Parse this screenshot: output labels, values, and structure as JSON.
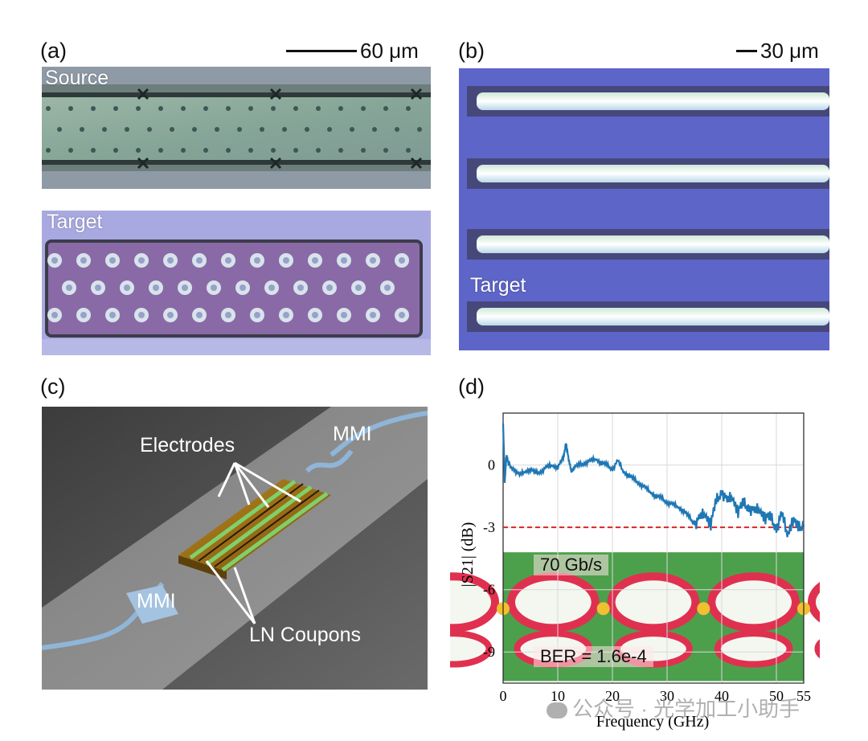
{
  "panels": {
    "a": {
      "label": "(a)",
      "scale": "60 μm",
      "source_label": "Source",
      "target_label": "Target"
    },
    "b": {
      "label": "(b)",
      "scale": "30 μm",
      "target_label": "Target"
    },
    "c": {
      "label": "(c)",
      "annotations": {
        "electrodes": "Electrodes",
        "mmi_top": "MMI",
        "mmi_bottom": "MMI",
        "ln_coupons": "LN Coupons"
      }
    },
    "d": {
      "label": "(d)",
      "eye_rate": "70 Gb/s",
      "ber": "BER = 1.6e-4"
    }
  },
  "watermark": "公众号 · 光学加工小助手",
  "colors": {
    "trace": "#1f77b4",
    "threshold": "#d62728",
    "panel_b_bg": "#5b63c4",
    "panel_a_source_bg": "#8aa79a",
    "panel_a_target_bg": "#8a6aa6"
  },
  "chart_data": {
    "type": "line",
    "xlabel": "Frequency (GHz)",
    "ylabel": "|S21| (dB)",
    "xlim": [
      0,
      55
    ],
    "ylim": [
      -10.5,
      2.5
    ],
    "xticks": [
      0,
      10,
      20,
      30,
      40,
      50,
      55
    ],
    "yticks": [
      0,
      -3,
      -6,
      -9
    ],
    "grid": true,
    "series": [
      {
        "x": [
          0,
          0.3,
          0.6,
          1,
          2,
          3,
          4,
          5,
          6,
          7,
          8,
          9,
          10,
          11,
          11.5,
          12,
          12.5,
          13,
          14,
          15,
          16,
          17,
          18,
          19,
          20,
          21,
          22,
          23,
          24,
          25,
          26,
          27,
          28,
          29,
          30,
          31,
          32,
          33,
          34,
          35,
          36,
          37,
          38,
          39,
          40,
          41,
          42,
          43,
          44,
          45,
          46,
          47,
          48,
          49,
          50,
          51,
          52,
          53,
          54,
          55
        ],
        "y": [
          2.0,
          -0.8,
          0.5,
          0.0,
          -0.2,
          -0.5,
          -0.3,
          -0.2,
          -0.4,
          -0.3,
          -0.1,
          0.0,
          -0.1,
          0.3,
          1.1,
          0.2,
          -0.3,
          -0.1,
          0.0,
          0.1,
          0.2,
          0.3,
          0.1,
          0.0,
          -0.2,
          0.2,
          -0.3,
          -0.5,
          -0.7,
          -0.9,
          -1.1,
          -1.3,
          -1.5,
          -1.6,
          -1.8,
          -1.9,
          -2.0,
          -2.2,
          -2.5,
          -2.8,
          -2.6,
          -2.3,
          -2.8,
          -1.8,
          -1.2,
          -1.8,
          -1.5,
          -2.2,
          -1.9,
          -2.0,
          -2.3,
          -2.1,
          -2.5,
          -2.6,
          -3.0,
          -2.4,
          -3.3,
          -2.6,
          -3.1,
          -2.8
        ]
      }
    ],
    "threshold_line": {
      "y": -3,
      "style": "dashed"
    }
  }
}
